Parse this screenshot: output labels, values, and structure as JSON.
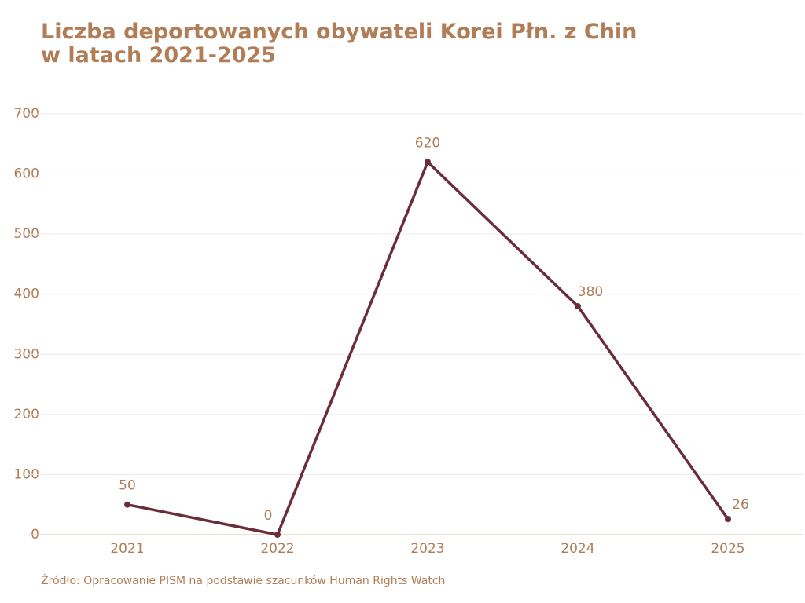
{
  "chart_data": {
    "type": "line",
    "title": "Liczba deportowanych obywateli Korei Płn. z Chin w latach 2021-2025",
    "categories": [
      "2021",
      "2022",
      "2023",
      "2024",
      "2025"
    ],
    "series": [
      {
        "name": "Liczba deportowanych",
        "color": "#6b2d3a",
        "values": [
          50,
          0,
          620,
          380,
          26
        ]
      }
    ],
    "ylim": [
      0,
      700
    ],
    "yticks": [
      0,
      100,
      200,
      300,
      400,
      500,
      600,
      700
    ],
    "grid": true,
    "source": "Źródło: Opracowanie PISM na podstawie szacunków Human Rights Watch"
  }
}
